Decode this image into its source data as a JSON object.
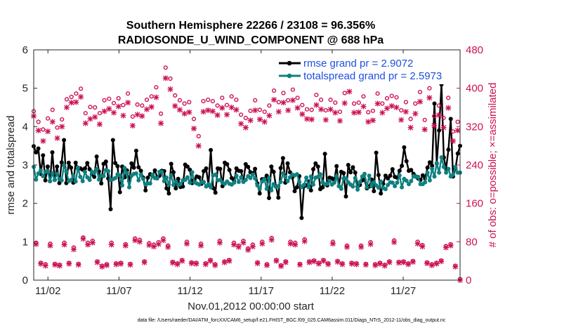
{
  "chart_data": {
    "type": "line",
    "title": "Southern Hemisphere 22266 / 23108 = 96.356%",
    "subtitle": "RADIOSONDE_U_WIND_COMPONENT @ 688 hPa",
    "xlabel": "Nov.01,2012 00:00:00 start",
    "ylabel": "rmse and totalspread",
    "ylabel_right": "# of obs: o=possible; ×=assimilated",
    "xlim": [
      0,
      30
    ],
    "ylim": [
      0,
      6
    ],
    "ylim_right": [
      0,
      480
    ],
    "xticks": [
      {
        "value": 1,
        "label": "11/02"
      },
      {
        "value": 6,
        "label": "11/07"
      },
      {
        "value": 11,
        "label": "11/12"
      },
      {
        "value": 16,
        "label": "11/17"
      },
      {
        "value": 21,
        "label": "11/22"
      },
      {
        "value": 26,
        "label": "11/27"
      }
    ],
    "yticks": [
      0,
      1,
      2,
      3,
      4,
      5,
      6
    ],
    "yticks_right": [
      0,
      80,
      160,
      240,
      320,
      400,
      480
    ],
    "legend_position": "top-right",
    "series": [
      {
        "name": "rmse grand pr = 2.9072",
        "color": "#000000",
        "marker": "circle",
        "axis": "left",
        "values": [
          3.49,
          3.33,
          3.43,
          2.77,
          3.25,
          2.6,
          2.96,
          2.58,
          3.33,
          2.61,
          2.96,
          2.53,
          3.07,
          3.65,
          2.53,
          3.06,
          2.93,
          2.54,
          3.06,
          2.91,
          2.91,
          2.88,
          2.91,
          3.05,
          2.89,
          2.76,
          2.69,
          3.22,
          2.83,
          2.52,
          3.03,
          3.09,
          2.65,
          1.85,
          3.65,
          3.05,
          2.97,
          2.29,
          2.96,
          2.68,
          2.86,
          2.58,
          3.04,
          2.93,
          3.37,
          2.94,
          2.85,
          2.67,
          2.34,
          2.67,
          2.76,
          2.72,
          2.86,
          2.68,
          2.72,
          2.85,
          2.84,
          2.39,
          2.26,
          3.03,
          2.81,
          2.39,
          2.64,
          2.43,
          2.44,
          3.01,
          2.96,
          2.88,
          2.53,
          2.62,
          2.7,
          2.68,
          2.51,
          2.84,
          2.91,
          2.48,
          3.39,
          2.4,
          2.28,
          2.91,
          2.9,
          2.45,
          3.06,
          3.02,
          2.87,
          2.66,
          2.59,
          2.91,
          2.85,
          2.84,
          2.58,
          3.02,
          2.95,
          2.81,
          2.78,
          2.9,
          2.52,
          2.26,
          2.63,
          2.64,
          2.72,
          2.14,
          2.96,
          2.82,
          2.44,
          2.15,
          2.92,
          3.18,
          2.54,
          3.04,
          2.81,
          2.68,
          2.32,
          2.42,
          2.71,
          1.62,
          2.45,
          2.47,
          2.57,
          2.34,
          2.89,
          3.04,
          2.96,
          2.37,
          2.42,
          3.29,
          2.47,
          2.67,
          2.65,
          2.6,
          2.97,
          2.45,
          2.82,
          2.79,
          2.18,
          3.0,
          2.81,
          2.94,
          2.8,
          2.44,
          2.48,
          2.6,
          2.62,
          2.39,
          2.44,
          2.62,
          2.32,
          3.32,
          2.74,
          2.26,
          2.51,
          2.72,
          2.65,
          2.72,
          2.89,
          2.69,
          2.67,
          2.85,
          2.98,
          3.46,
          3.1,
          2.85,
          2.87,
          2.77,
          2.7,
          2.65,
          2.61,
          2.73,
          2.65,
          2.93,
          3.07,
          2.98,
          4.6,
          3.04,
          3.9,
          5.1,
          3.2,
          2.9,
          3.4,
          4.2,
          2.7,
          2.9,
          3.3,
          3.5
        ]
      },
      {
        "name": "totalspread grand pr = 2.5973",
        "color": "#0f8080",
        "marker": "circle",
        "axis": "left",
        "values": [
          2.95,
          2.62,
          2.78,
          2.86,
          2.71,
          2.82,
          2.84,
          2.58,
          2.78,
          2.61,
          2.77,
          2.63,
          2.6,
          2.99,
          2.83,
          2.58,
          2.61,
          2.72,
          2.57,
          2.93,
          2.69,
          2.58,
          2.82,
          2.68,
          2.61,
          2.82,
          2.79,
          2.89,
          2.62,
          2.72,
          2.71,
          2.87,
          2.84,
          2.61,
          2.63,
          2.66,
          2.76,
          2.73,
          2.47,
          2.92,
          2.79,
          2.42,
          2.72,
          2.77,
          2.78,
          2.6,
          2.75,
          2.64,
          2.49,
          2.52,
          2.52,
          2.75,
          2.66,
          2.65,
          2.82,
          2.82,
          2.58,
          2.67,
          2.49,
          2.73,
          2.48,
          2.57,
          2.48,
          2.5,
          2.6,
          2.61,
          2.68,
          2.54,
          2.81,
          2.55,
          2.52,
          2.49,
          2.56,
          2.56,
          2.44,
          2.5,
          2.42,
          2.73,
          2.75,
          2.6,
          2.61,
          2.54,
          2.51,
          2.57,
          2.51,
          2.49,
          2.54,
          2.72,
          2.56,
          2.68,
          2.56,
          2.61,
          2.71,
          2.66,
          2.75,
          2.65,
          2.47,
          2.38,
          2.57,
          2.63,
          2.38,
          2.66,
          2.34,
          2.5,
          2.43,
          2.45,
          2.56,
          2.78,
          2.69,
          2.58,
          2.68,
          2.75,
          2.73,
          2.76,
          2.56,
          2.43,
          2.48,
          2.67,
          2.42,
          2.7,
          2.49,
          2.67,
          2.69,
          2.76,
          2.55,
          2.5,
          2.51,
          2.58,
          2.49,
          2.54,
          2.71,
          2.45,
          2.38,
          2.65,
          2.65,
          2.55,
          2.49,
          2.44,
          2.66,
          2.36,
          2.56,
          2.7,
          2.77,
          2.42,
          2.72,
          2.45,
          2.55,
          2.47,
          2.41,
          2.57,
          2.4,
          2.37,
          2.48,
          2.55,
          2.54,
          2.45,
          2.54,
          2.73,
          2.42,
          2.64,
          2.59,
          2.5,
          2.58,
          2.71,
          2.69,
          2.69,
          2.5,
          2.5,
          2.55,
          2.8,
          2.6,
          2.9,
          2.7,
          3.05,
          2.8,
          3.2,
          2.95,
          2.8,
          2.9,
          2.7,
          2.75,
          2.95,
          2.8,
          2.8
        ]
      },
      {
        "name": "obs possible",
        "color": "#cc1155",
        "marker": "o",
        "axis": "right",
        "values": [
          352,
          78,
          330,
          36,
          314,
          33,
          337,
          76,
          355,
          34,
          318,
          32,
          335,
          78,
          377,
          36,
          382,
          68,
          389,
          34,
          399,
          89,
          348,
          78,
          361,
          82,
          360,
          39,
          348,
          30,
          375,
          33,
          378,
          78,
          369,
          35,
          379,
          36,
          365,
          75,
          389,
          34,
          341,
          87,
          366,
          84,
          364,
          39,
          376,
          77,
          383,
          74,
          402,
          79,
          347,
          87,
          443,
          72,
          420,
          38,
          385,
          35,
          375,
          42,
          368,
          80,
          371,
          37,
          336,
          36,
          300,
          76,
          373,
          35,
          376,
          42,
          373,
          33,
          364,
          82,
          380,
          39,
          365,
          42,
          383,
          78,
          376,
          72,
          345,
          82,
          338,
          66,
          353,
          74,
          375,
          37,
          355,
          80,
          351,
          33,
          364,
          88,
          395,
          42,
          371,
          31,
          390,
          39,
          375,
          80,
          397,
          78,
          380,
          34,
          365,
          85,
          356,
          39,
          355,
          41,
          386,
          36,
          376,
          42,
          354,
          35,
          376,
          80,
          370,
          40,
          351,
          35,
          390,
          72,
          415,
          36,
          368,
          35,
          370,
          72,
          383,
          34,
          350,
          79,
          353,
          33,
          389,
          36,
          368,
          32,
          379,
          39,
          384,
          83,
          381,
          38,
          354,
          39,
          371,
          35,
          336,
          40,
          368,
          80,
          392,
          73,
          334,
          37,
          400,
          33,
          342,
          36,
          364,
          41,
          338,
          71,
          380,
          75,
          310,
          30,
          330,
          2
        ]
      },
      {
        "name": "obs assimilated",
        "color": "#cc1155",
        "marker": "x",
        "axis": "right",
        "values": [
          342,
          75,
          312,
          34,
          290,
          30,
          310,
          72,
          330,
          32,
          296,
          30,
          320,
          74,
          360,
          34,
          370,
          64,
          371,
          32,
          382,
          86,
          327,
          74,
          336,
          78,
          340,
          37,
          325,
          28,
          352,
          31,
          357,
          74,
          349,
          33,
          362,
          34,
          343,
          72,
          370,
          32,
          322,
          83,
          345,
          80,
          342,
          37,
          356,
          73,
          361,
          70,
          381,
          75,
          327,
          83,
          421,
          69,
          398,
          36,
          363,
          33,
          355,
          40,
          347,
          76,
          350,
          35,
          316,
          34,
          280,
          72,
          351,
          33,
          354,
          40,
          352,
          31,
          344,
          78,
          359,
          37,
          345,
          40,
          360,
          74,
          355,
          69,
          326,
          78,
          318,
          63,
          333,
          70,
          354,
          35,
          335,
          76,
          330,
          31,
          343,
          84,
          376,
          40,
          351,
          29,
          370,
          37,
          354,
          76,
          375,
          74,
          359,
          32,
          346,
          81,
          336,
          37,
          335,
          39,
          365,
          34,
          356,
          40,
          334,
          33,
          356,
          76,
          349,
          38,
          332,
          33,
          369,
          69,
          393,
          34,
          349,
          33,
          350,
          69,
          362,
          32,
          330,
          75,
          333,
          31,
          368,
          34,
          349,
          30,
          358,
          37,
          363,
          79,
          360,
          36,
          334,
          37,
          351,
          33,
          318,
          38,
          347,
          76,
          372,
          70,
          314,
          35,
          380,
          31,
          322,
          34,
          344,
          39,
          318,
          68,
          359,
          72,
          290,
          28,
          312,
          0
        ]
      }
    ]
  },
  "footer": "data file: /Users/raeder/DAI/ATM_forcXX/CAM6_setup/f.e21.FHIST_BGC.f09_025.CAM6assim.011/Diags_NTrS_2012-11/obs_diag_output.nc"
}
